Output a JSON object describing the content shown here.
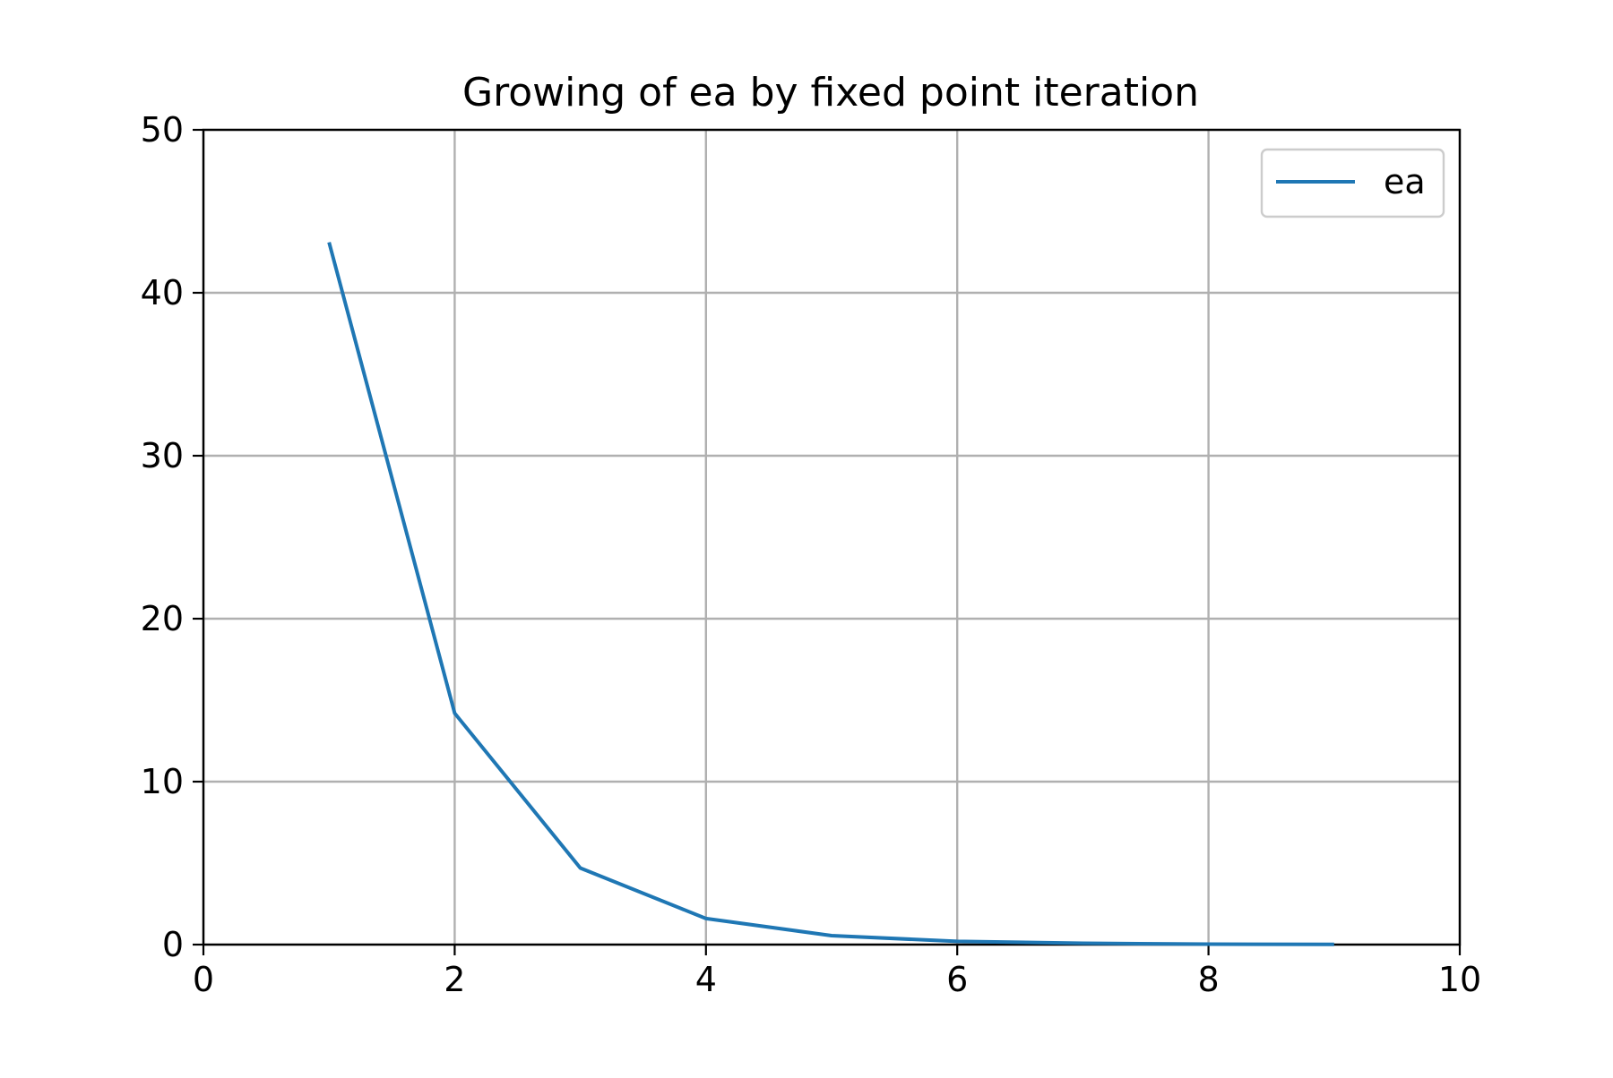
{
  "chart_data": {
    "type": "line",
    "title": "Growing of ea by fixed point iteration",
    "xlabel": "",
    "ylabel": "",
    "xlim": [
      0,
      10
    ],
    "ylim": [
      0,
      50
    ],
    "xticks": [
      0,
      2,
      4,
      6,
      8,
      10
    ],
    "yticks": [
      0,
      10,
      20,
      30,
      40,
      50
    ],
    "grid": true,
    "legend": {
      "position": "top-right"
    },
    "series": [
      {
        "name": "ea",
        "color": "#1f77b4",
        "x": [
          1,
          2,
          3,
          4,
          5,
          6,
          7,
          8,
          9
        ],
        "y": [
          43.1,
          14.2,
          4.7,
          1.6,
          0.55,
          0.2,
          0.08,
          0.03,
          0.01
        ]
      }
    ]
  }
}
